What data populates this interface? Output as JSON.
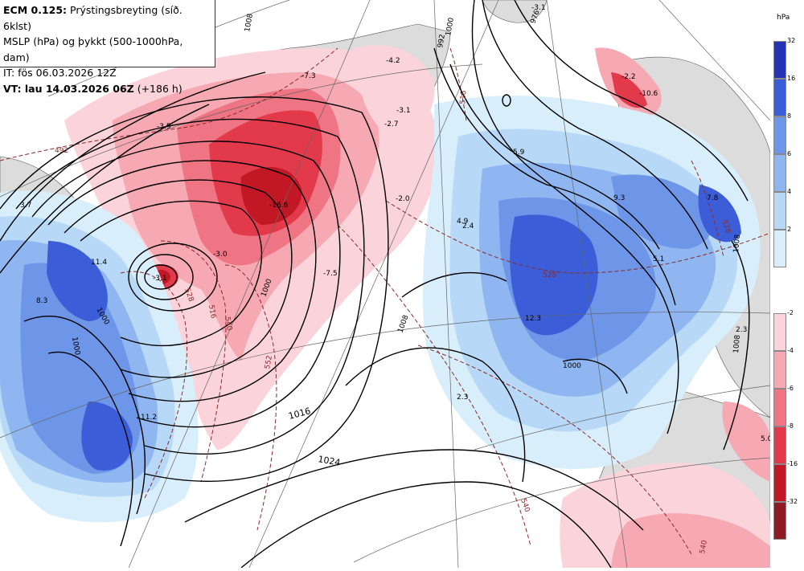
{
  "header": {
    "line1_bold": "ECM 0.125:",
    "line1_rest": " Prýstingsbreyting (síð. 6klst)",
    "line2": "MSLP (hPa) og þykkt (500-1000hPa, dam)",
    "line3": "IT: fös 06.03.2026 12Z",
    "line4_bold": "VT: lau 14.03.2026 06Z",
    "line4_rest": " (+186 h)"
  },
  "legend": {
    "unit": "hPa",
    "rise": [
      {
        "label": "32",
        "color": "#2434b4"
      },
      {
        "label": "16",
        "color": "#3b5ed8"
      },
      {
        "label": "8",
        "color": "#6d95e8"
      },
      {
        "label": "6",
        "color": "#8fb6f0"
      },
      {
        "label": "4",
        "color": "#b7d9f7"
      },
      {
        "label": "2",
        "color": "#d9eefb"
      }
    ],
    "fall": [
      {
        "label": "-2",
        "color": "#fbd3da"
      },
      {
        "label": "-4",
        "color": "#f6a8b3"
      },
      {
        "label": "-6",
        "color": "#ef7584"
      },
      {
        "label": "-8",
        "color": "#e23a4a"
      },
      {
        "label": "-16",
        "color": "#c21825"
      },
      {
        "label": "-32",
        "color": "#8e1a24"
      }
    ]
  },
  "map": {
    "isobar_labels": [
      "1008",
      "1000",
      "1016",
      "1024",
      "992",
      "1000",
      "1008",
      "1000",
      "1000",
      "1008",
      "1008",
      "976",
      "1000"
    ],
    "thickness_labels": [
      "492",
      "528",
      "540",
      "540",
      "516",
      "552",
      "528",
      "540",
      "516",
      "528"
    ],
    "change_labels": [
      "-3.1",
      "-7.3",
      "-4.2",
      "-2.7",
      "-3.5",
      "-16.6",
      "-3.0",
      "-2.0",
      "-7.5",
      "-10.6",
      "-2.2",
      "-3.1",
      "3.7",
      "11.4",
      "8.3",
      "11.2",
      "4.9",
      "2.4",
      "5.9",
      "9.3",
      "7.8",
      "5.1",
      "12.3",
      "2.3",
      "2.3",
      "5.0",
      "-3.1"
    ]
  }
}
